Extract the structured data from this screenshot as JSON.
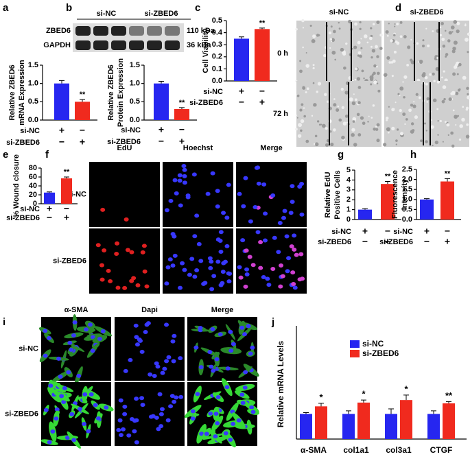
{
  "chart_data": [
    {
      "type": "bar",
      "ylabel": [
        "Relative ZBED6",
        "mRNA Expression"
      ],
      "values": [
        1.0,
        0.5
      ],
      "errors": [
        0.08,
        0.06
      ],
      "colors": [
        "#2626f0",
        "#f02a1e"
      ],
      "ylim": [
        0,
        1.5
      ],
      "yticks": [
        {
          "value": 0,
          "label": "0.0"
        },
        0.5,
        {
          "value": 1,
          "label": "1.0"
        },
        1.5
      ],
      "treatments": [
        {
          "name": "si-NC",
          "signs": [
            "+",
            "−"
          ]
        },
        {
          "name": "si-ZBED6",
          "signs": [
            "−",
            "+"
          ]
        }
      ],
      "significance": "**"
    },
    {
      "type": "bar",
      "ylabel": [
        "Relative ZBED6",
        "Protein Expression"
      ],
      "values": [
        1.0,
        0.3
      ],
      "errors": [
        0.06,
        0.04
      ],
      "colors": [
        "#2626f0",
        "#f02a1e"
      ],
      "ylim": [
        0,
        1.5
      ],
      "yticks": [
        {
          "value": 0,
          "label": "0.0"
        },
        0.5,
        {
          "value": 1,
          "label": "1.0"
        },
        1.5
      ],
      "treatments": [
        {
          "name": "si-NC",
          "signs": [
            "+",
            "−"
          ]
        },
        {
          "name": "si-ZBED6",
          "signs": [
            "−",
            "+"
          ]
        }
      ],
      "significance": "**"
    },
    {
      "type": "bar",
      "ylabel": [
        "Cell Viability"
      ],
      "values": [
        0.35,
        0.43
      ],
      "errors": [
        0.015,
        0.008
      ],
      "colors": [
        "#2626f0",
        "#f02a1e"
      ],
      "ylim": [
        0,
        0.5
      ],
      "yticks": [
        {
          "value": 0,
          "label": "0.0"
        },
        0.1,
        0.2,
        0.3,
        0.4,
        0.5
      ],
      "treatments": [
        {
          "name": "si-NC",
          "signs": [
            "+",
            "−"
          ]
        },
        {
          "name": "si-ZBED6",
          "signs": [
            "−",
            "+"
          ]
        }
      ],
      "significance": "**"
    },
    {
      "type": "bar",
      "ylabel": [
        "% Wound closure"
      ],
      "values": [
        25,
        57
      ],
      "errors": [
        1.5,
        3
      ],
      "colors": [
        "#2626f0",
        "#f02a1e"
      ],
      "ylim": [
        0,
        80
      ],
      "yticks": [
        0,
        20,
        40,
        60,
        80
      ],
      "treatments": [
        {
          "name": "si-NC",
          "signs": [
            "+",
            "−"
          ]
        },
        {
          "name": "si-ZBED6",
          "signs": [
            "−",
            "+"
          ]
        }
      ],
      "significance": "**"
    },
    {
      "type": "bar",
      "ylabel": [
        "Relative EdU",
        "Positive Cells"
      ],
      "values": [
        1.0,
        3.6
      ],
      "errors": [
        0.1,
        0.25
      ],
      "colors": [
        "#2626f0",
        "#f02a1e"
      ],
      "ylim": [
        0,
        5
      ],
      "yticks": [
        0,
        1,
        2,
        3,
        4,
        5
      ],
      "treatments": [
        {
          "name": "si-NC",
          "signs": [
            "+",
            "−"
          ]
        },
        {
          "name": "si-ZBED6",
          "signs": [
            "−",
            "+"
          ]
        }
      ],
      "significance": "**"
    },
    {
      "type": "bar",
      "ylabel": [
        "Fluorescence",
        "intensity"
      ],
      "values": [
        1.0,
        1.9
      ],
      "errors": [
        0.04,
        0.14
      ],
      "colors": [
        "#2626f0",
        "#f02a1e"
      ],
      "ylim": [
        0,
        2.5
      ],
      "yticks": [
        {
          "value": 0,
          "label": "0.0"
        },
        0.5,
        {
          "value": 1,
          "label": "1.0"
        },
        1.5,
        {
          "value": 2,
          "label": "2.0"
        },
        2.5
      ],
      "treatments": [
        {
          "name": "si-NC",
          "signs": [
            "+",
            "−"
          ]
        },
        {
          "name": "si-ZBED6",
          "signs": [
            "−",
            "+"
          ]
        }
      ],
      "significance": "**"
    },
    {
      "type": "grouped-bar",
      "ylabel": "Relative mRNA Levels",
      "categories": [
        "α-SMA",
        "col1a1",
        "col3a1",
        "CTGF"
      ],
      "ylim": [
        0,
        4.5
      ],
      "series": [
        {
          "name": "si-NC",
          "color": "#2626f0",
          "values": [
            1.0,
            1.0,
            1.0,
            1.0
          ],
          "errors": [
            0.05,
            0.12,
            0.2,
            0.12
          ]
        },
        {
          "name": "si-ZBED6",
          "color": "#f02a1e",
          "values": [
            1.3,
            1.45,
            1.55,
            1.42
          ],
          "errors": [
            0.12,
            0.1,
            0.2,
            0.07
          ]
        }
      ],
      "significance": [
        "*",
        "*",
        "*",
        "**"
      ]
    }
  ],
  "figure": {
    "panels": [
      "a",
      "b",
      "c",
      "d",
      "e",
      "f",
      "g",
      "h",
      "i",
      "j"
    ],
    "blot": {
      "groups": [
        "si-NC",
        "si-ZBED6"
      ],
      "rows": [
        {
          "name": "ZBED6",
          "size": "110 kDa"
        },
        {
          "name": "GAPDH",
          "size": "36 kDa"
        }
      ]
    },
    "wound": {
      "columns": [
        "si-NC",
        "si-ZBED6"
      ],
      "rows": [
        "0 h",
        "72 h"
      ]
    },
    "edu": {
      "columns": [
        "EdU",
        "Hoechst",
        "Merge"
      ],
      "rows": [
        "si-NC",
        "si-ZBED6"
      ]
    },
    "sma": {
      "columns": [
        "α-SMA",
        "Dapi",
        "Merge"
      ],
      "rows": [
        "si-NC",
        "si-ZBED6"
      ]
    }
  }
}
